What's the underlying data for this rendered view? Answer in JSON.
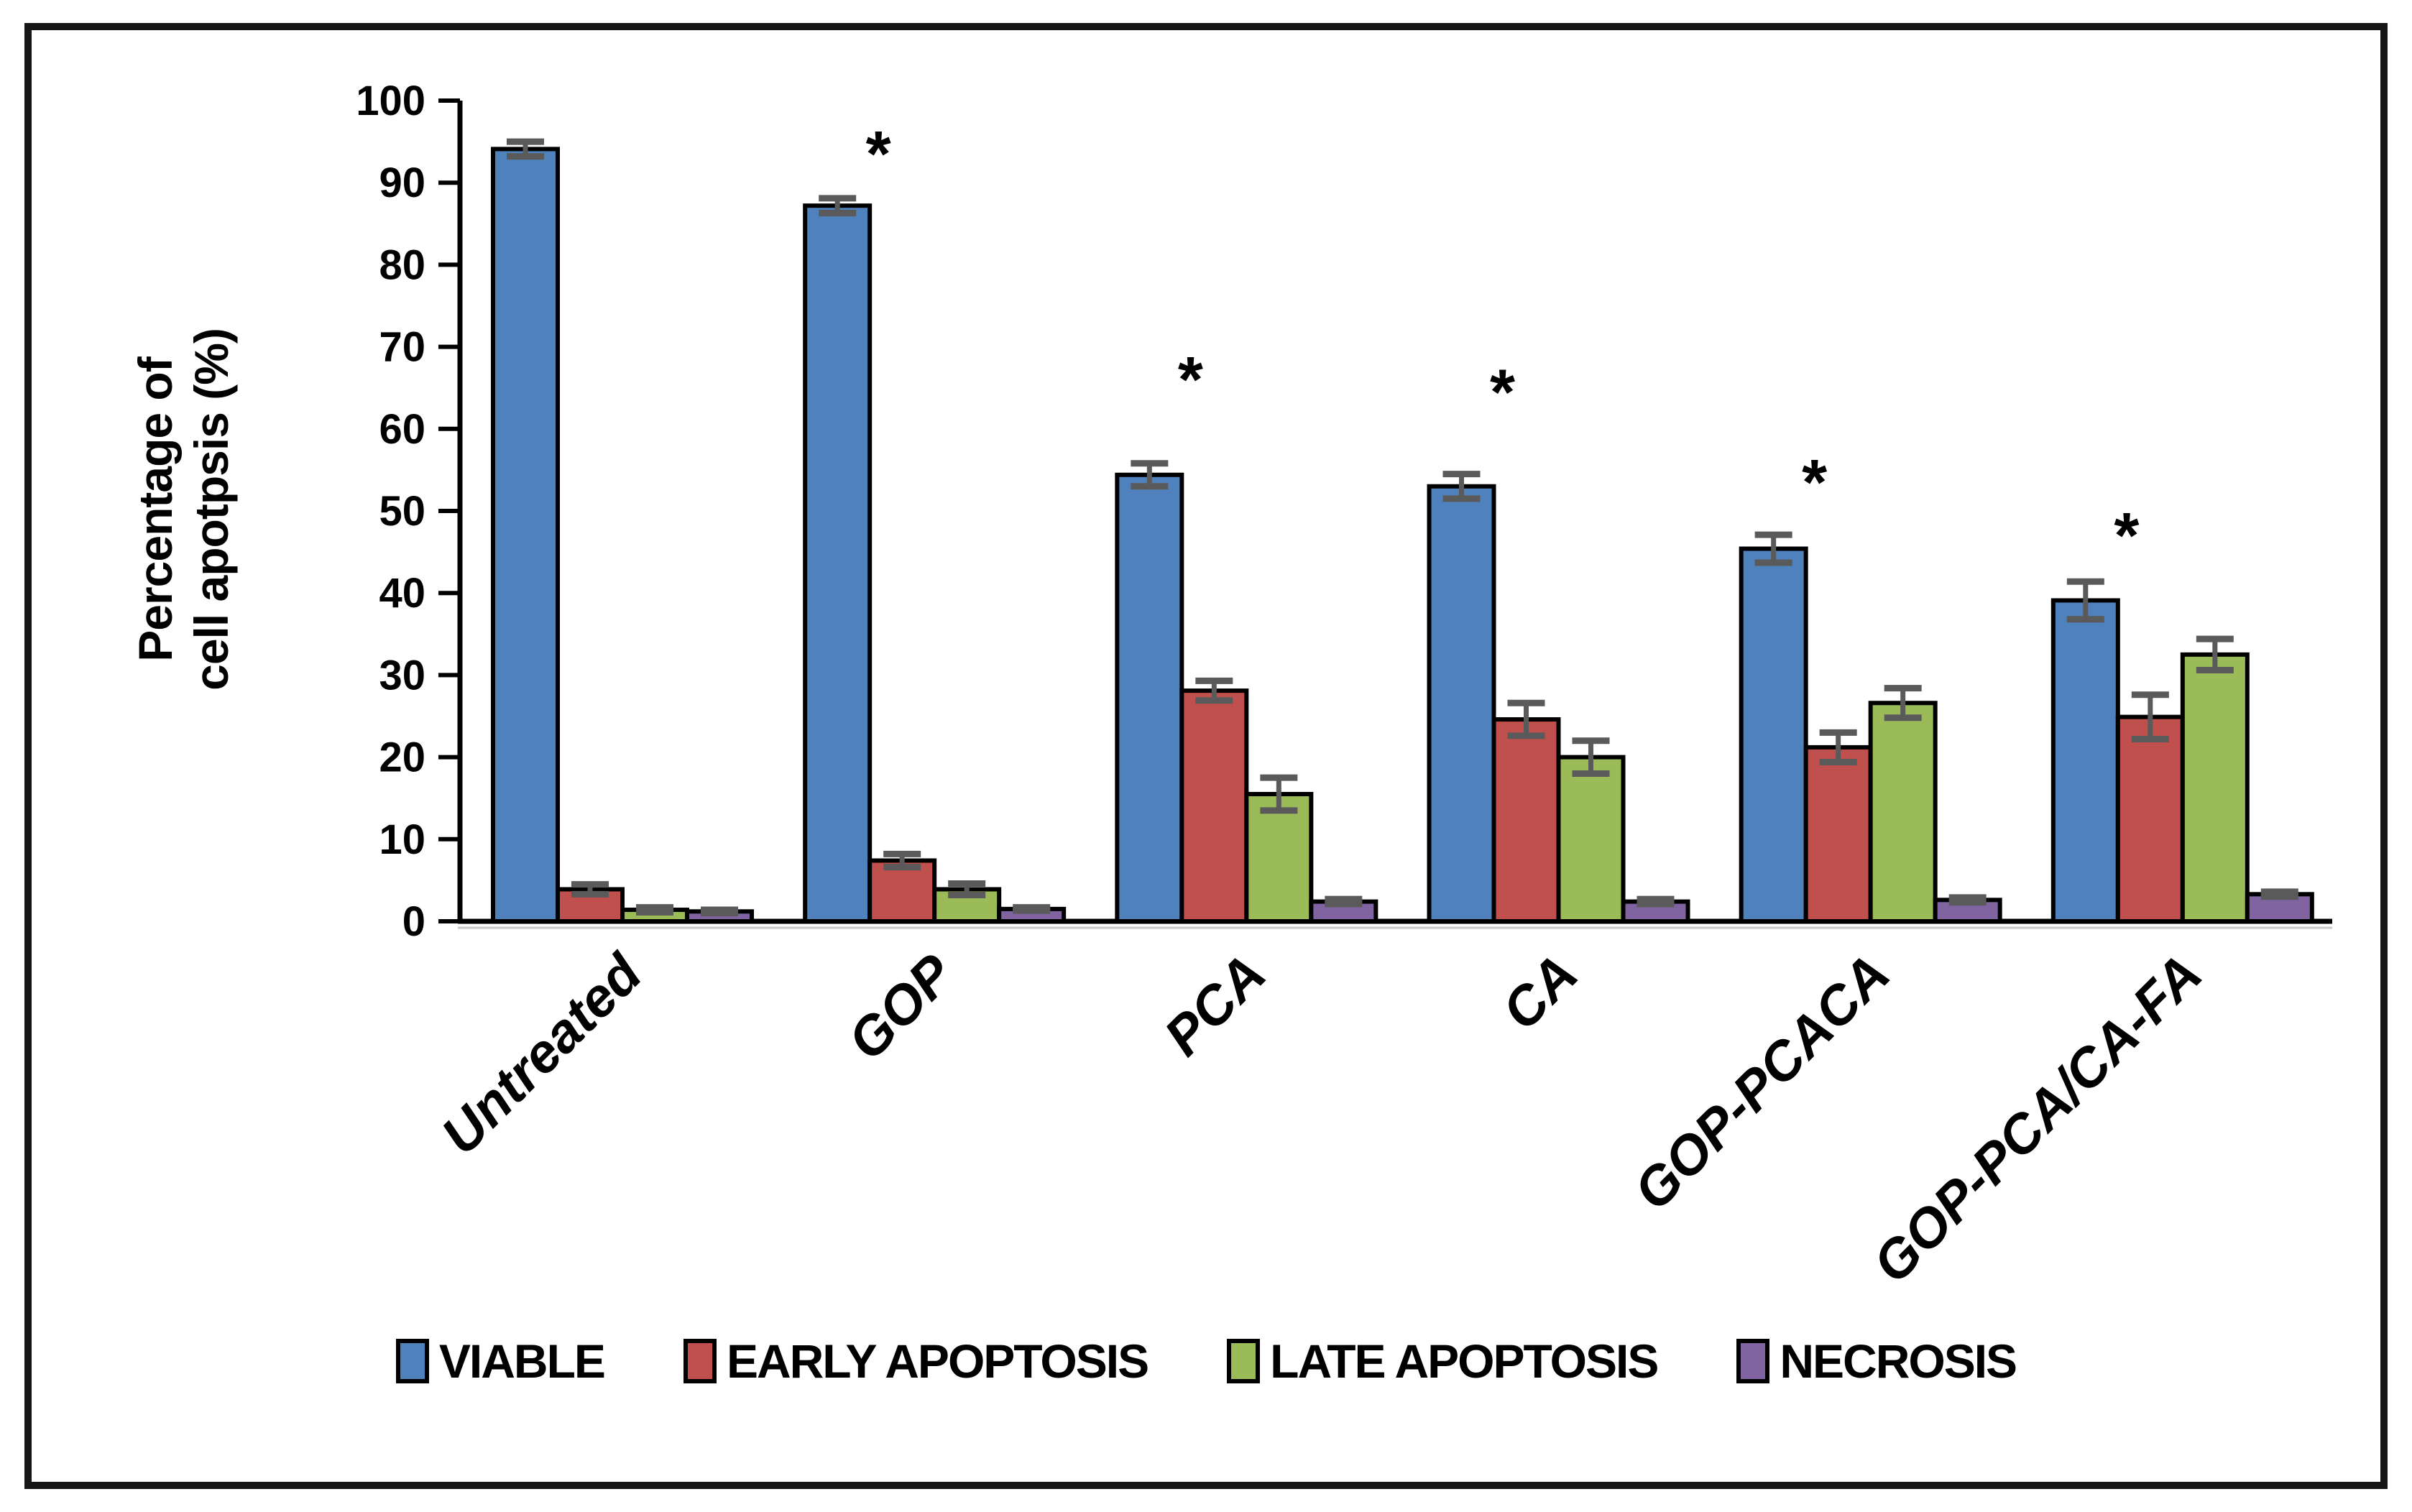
{
  "figure": {
    "y_axis_title": {
      "line1": "Percentage of",
      "line2": "cell apotpsis (%)"
    },
    "frame_color": "#161616",
    "background": "#ffffff"
  },
  "chart_data": {
    "type": "bar",
    "title": "",
    "xlabel": "",
    "ylabel": "Percentage of cell apotpsis (%)",
    "ylim": [
      0,
      100
    ],
    "yticks": [
      0,
      10,
      20,
      30,
      40,
      50,
      60,
      70,
      80,
      90,
      100
    ],
    "grid": false,
    "legend_position": "bottom",
    "categories": [
      "Untreated",
      "GOP",
      "PCA",
      "CA",
      "GOP-PCACA",
      "GOP-PCA/CA-FA"
    ],
    "series": [
      {
        "name": "VIABLE",
        "color": "#4F81BD",
        "values": [
          94.1,
          87.2,
          54.4,
          53.0,
          45.4,
          39.1
        ],
        "errors": [
          0.9,
          0.9,
          1.4,
          1.5,
          1.7,
          2.3
        ]
      },
      {
        "name": "EARLY APOPTOSIS",
        "color": "#C0504D",
        "values": [
          3.9,
          7.4,
          28.1,
          24.6,
          21.2,
          24.9
        ],
        "errors": [
          0.6,
          0.8,
          1.2,
          2.0,
          1.8,
          2.7
        ]
      },
      {
        "name": "LATE APOPTOSIS",
        "color": "#9BBB59",
        "values": [
          1.4,
          3.9,
          15.5,
          20.0,
          26.6,
          32.5
        ],
        "errors": [
          0.3,
          0.7,
          2.0,
          2.0,
          1.8,
          1.9
        ]
      },
      {
        "name": "NECROSIS",
        "color": "#8064A2",
        "values": [
          1.2,
          1.5,
          2.4,
          2.4,
          2.6,
          3.3
        ],
        "errors": [
          0.2,
          0.2,
          0.3,
          0.3,
          0.3,
          0.3
        ]
      }
    ],
    "error_bar_color": "#5a5a5a",
    "bar_border_color": "#000000",
    "significance": {
      "symbol": "*",
      "per_category": [
        null,
        95,
        67.5,
        66,
        55,
        48.5
      ]
    }
  }
}
